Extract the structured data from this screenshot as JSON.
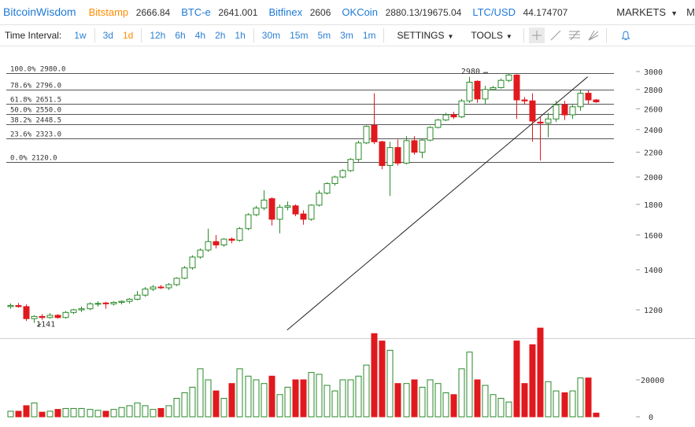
{
  "header": {
    "brand": "BitcoinWisdom",
    "tickers": [
      {
        "name": "Bitstamp",
        "price": "2666.84",
        "color": "#ff8c00"
      },
      {
        "name": "BTC-e",
        "price": "2641.001",
        "color": "#1f7ad6"
      },
      {
        "name": "Bitfinex",
        "price": "2606",
        "color": "#1f7ad6"
      },
      {
        "name": "OKCoin",
        "price": "2880.13/19675.04",
        "color": "#1f7ad6"
      },
      {
        "name": "LTC/USD",
        "price": "44.174707",
        "color": "#1f7ad6"
      }
    ],
    "markets_label": "MARKETS",
    "extra": "M"
  },
  "toolbar": {
    "time_interval_label": "Time Interval:",
    "intervals_a": [
      "1w",
      "3d",
      "1d"
    ],
    "intervals_b": [
      "12h",
      "6h",
      "4h",
      "2h",
      "1h"
    ],
    "intervals_c": [
      "30m",
      "15m",
      "5m",
      "3m",
      "1m"
    ],
    "active_interval": "1d",
    "settings_label": "SETTINGS",
    "tools_label": "TOOLS",
    "tool_icons": [
      "crosshair-icon",
      "line-draw-icon",
      "fibonacci-lines-icon",
      "fan-lines-icon"
    ],
    "alert_icon": "bell-icon"
  },
  "chart_data": {
    "type": "candlestick",
    "y_scale": "log",
    "price_ylim": [
      1080,
      3080
    ],
    "price_ticks": [
      1200,
      1400,
      1600,
      1800,
      2000,
      2200,
      2400,
      2600,
      2800,
      3000
    ],
    "volume_ticks": [
      0,
      20000
    ],
    "up_color": "#2a8a2a",
    "down_color": "#e0191e",
    "fib_levels": [
      {
        "pct": "100.0%",
        "value": 2980.0
      },
      {
        "pct": "78.6%",
        "value": 2796.0
      },
      {
        "pct": "61.8%",
        "value": 2651.5
      },
      {
        "pct": "50.0%",
        "value": 2550.0
      },
      {
        "pct": "38.2%",
        "value": 2448.5
      },
      {
        "pct": "23.6%",
        "value": 2323.0
      },
      {
        "pct": "0.0%",
        "value": 2120.0
      }
    ],
    "annotations": [
      {
        "text": "1141",
        "index": 4,
        "value": 1141
      },
      {
        "text": "2980",
        "index": 60,
        "value": 2980
      }
    ],
    "trendline": {
      "from": {
        "index": 35,
        "value": 1110
      },
      "to": {
        "index": 73,
        "value": 2940
      }
    },
    "candles": [
      {
        "o": 1215,
        "h": 1230,
        "l": 1205,
        "c": 1220
      },
      {
        "o": 1220,
        "h": 1232,
        "l": 1210,
        "c": 1215
      },
      {
        "o": 1215,
        "h": 1225,
        "l": 1150,
        "c": 1160
      },
      {
        "o": 1160,
        "h": 1175,
        "l": 1141,
        "c": 1170
      },
      {
        "o": 1170,
        "h": 1180,
        "l": 1155,
        "c": 1165
      },
      {
        "o": 1165,
        "h": 1185,
        "l": 1160,
        "c": 1175
      },
      {
        "o": 1175,
        "h": 1180,
        "l": 1160,
        "c": 1165
      },
      {
        "o": 1165,
        "h": 1195,
        "l": 1160,
        "c": 1188
      },
      {
        "o": 1188,
        "h": 1205,
        "l": 1180,
        "c": 1200
      },
      {
        "o": 1200,
        "h": 1215,
        "l": 1190,
        "c": 1205
      },
      {
        "o": 1205,
        "h": 1235,
        "l": 1198,
        "c": 1228
      },
      {
        "o": 1228,
        "h": 1240,
        "l": 1215,
        "c": 1230
      },
      {
        "o": 1232,
        "h": 1238,
        "l": 1205,
        "c": 1228
      },
      {
        "o": 1228,
        "h": 1240,
        "l": 1220,
        "c": 1235
      },
      {
        "o": 1235,
        "h": 1245,
        "l": 1225,
        "c": 1240
      },
      {
        "o": 1240,
        "h": 1255,
        "l": 1230,
        "c": 1250
      },
      {
        "o": 1250,
        "h": 1290,
        "l": 1245,
        "c": 1270
      },
      {
        "o": 1270,
        "h": 1310,
        "l": 1262,
        "c": 1300
      },
      {
        "o": 1300,
        "h": 1320,
        "l": 1290,
        "c": 1310
      },
      {
        "o": 1310,
        "h": 1320,
        "l": 1300,
        "c": 1306
      },
      {
        "o": 1306,
        "h": 1330,
        "l": 1295,
        "c": 1322
      },
      {
        "o": 1322,
        "h": 1360,
        "l": 1315,
        "c": 1355
      },
      {
        "o": 1355,
        "h": 1420,
        "l": 1350,
        "c": 1410
      },
      {
        "o": 1410,
        "h": 1480,
        "l": 1400,
        "c": 1470
      },
      {
        "o": 1470,
        "h": 1520,
        "l": 1460,
        "c": 1510
      },
      {
        "o": 1510,
        "h": 1640,
        "l": 1500,
        "c": 1560
      },
      {
        "o": 1560,
        "h": 1600,
        "l": 1520,
        "c": 1540
      },
      {
        "o": 1540,
        "h": 1580,
        "l": 1530,
        "c": 1575
      },
      {
        "o": 1575,
        "h": 1585,
        "l": 1550,
        "c": 1568
      },
      {
        "o": 1568,
        "h": 1650,
        "l": 1560,
        "c": 1640
      },
      {
        "o": 1640,
        "h": 1740,
        "l": 1630,
        "c": 1730
      },
      {
        "o": 1730,
        "h": 1790,
        "l": 1720,
        "c": 1775
      },
      {
        "o": 1775,
        "h": 1900,
        "l": 1760,
        "c": 1830
      },
      {
        "o": 1840,
        "h": 1850,
        "l": 1660,
        "c": 1700
      },
      {
        "o": 1700,
        "h": 1800,
        "l": 1610,
        "c": 1780
      },
      {
        "o": 1780,
        "h": 1820,
        "l": 1760,
        "c": 1790
      },
      {
        "o": 1790,
        "h": 1800,
        "l": 1720,
        "c": 1735
      },
      {
        "o": 1735,
        "h": 1760,
        "l": 1665,
        "c": 1700
      },
      {
        "o": 1700,
        "h": 1800,
        "l": 1690,
        "c": 1795
      },
      {
        "o": 1795,
        "h": 1900,
        "l": 1785,
        "c": 1880
      },
      {
        "o": 1880,
        "h": 1960,
        "l": 1870,
        "c": 1950
      },
      {
        "o": 1950,
        "h": 2010,
        "l": 1935,
        "c": 2000
      },
      {
        "o": 2000,
        "h": 2060,
        "l": 1990,
        "c": 2050
      },
      {
        "o": 2050,
        "h": 2150,
        "l": 2040,
        "c": 2140
      },
      {
        "o": 2140,
        "h": 2300,
        "l": 2120,
        "c": 2280
      },
      {
        "o": 2280,
        "h": 2440,
        "l": 2270,
        "c": 2430
      },
      {
        "o": 2440,
        "h": 2760,
        "l": 2270,
        "c": 2290
      },
      {
        "o": 2290,
        "h": 2300,
        "l": 2060,
        "c": 2090
      },
      {
        "o": 2090,
        "h": 2290,
        "l": 1860,
        "c": 2240
      },
      {
        "o": 2240,
        "h": 2310,
        "l": 2090,
        "c": 2110
      },
      {
        "o": 2110,
        "h": 2340,
        "l": 2100,
        "c": 2300
      },
      {
        "o": 2300,
        "h": 2340,
        "l": 2180,
        "c": 2200
      },
      {
        "o": 2200,
        "h": 2320,
        "l": 2150,
        "c": 2305
      },
      {
        "o": 2305,
        "h": 2430,
        "l": 2295,
        "c": 2420
      },
      {
        "o": 2420,
        "h": 2500,
        "l": 2410,
        "c": 2490
      },
      {
        "o": 2490,
        "h": 2560,
        "l": 2480,
        "c": 2540
      },
      {
        "o": 2540,
        "h": 2570,
        "l": 2500,
        "c": 2520
      },
      {
        "o": 2520,
        "h": 2700,
        "l": 2510,
        "c": 2680
      },
      {
        "o": 2680,
        "h": 2940,
        "l": 2660,
        "c": 2880
      },
      {
        "o": 2890,
        "h": 2900,
        "l": 2660,
        "c": 2700
      },
      {
        "o": 2700,
        "h": 2840,
        "l": 2640,
        "c": 2800
      },
      {
        "o": 2800,
        "h": 2840,
        "l": 2790,
        "c": 2820
      },
      {
        "o": 2820,
        "h": 2920,
        "l": 2810,
        "c": 2900
      },
      {
        "o": 2900,
        "h": 2980,
        "l": 2880,
        "c": 2960
      },
      {
        "o": 2960,
        "h": 2970,
        "l": 2500,
        "c": 2690
      },
      {
        "o": 2690,
        "h": 2720,
        "l": 2640,
        "c": 2680
      },
      {
        "o": 2680,
        "h": 2760,
        "l": 2290,
        "c": 2480
      },
      {
        "o": 2470,
        "h": 2520,
        "l": 2130,
        "c": 2460
      },
      {
        "o": 2460,
        "h": 2560,
        "l": 2330,
        "c": 2500
      },
      {
        "o": 2500,
        "h": 2680,
        "l": 2470,
        "c": 2640
      },
      {
        "o": 2640,
        "h": 2680,
        "l": 2490,
        "c": 2540
      },
      {
        "o": 2540,
        "h": 2640,
        "l": 2500,
        "c": 2620
      },
      {
        "o": 2620,
        "h": 2800,
        "l": 2580,
        "c": 2760
      },
      {
        "o": 2760,
        "h": 2790,
        "l": 2640,
        "c": 2690
      },
      {
        "o": 2690,
        "h": 2700,
        "l": 2660,
        "c": 2670
      }
    ],
    "volumes": [
      3000,
      3000,
      6000,
      7500,
      2500,
      3000,
      4000,
      4500,
      4500,
      4500,
      4000,
      3500,
      3000,
      4000,
      5000,
      6000,
      7500,
      6000,
      4000,
      4500,
      6000,
      10000,
      13000,
      16000,
      26000,
      20000,
      14000,
      10000,
      18000,
      26000,
      22000,
      20000,
      18000,
      22000,
      12000,
      16000,
      20000,
      20000,
      24000,
      23000,
      17000,
      14000,
      20000,
      20000,
      22000,
      28000,
      45000,
      41000,
      36000,
      18000,
      18000,
      20000,
      16000,
      20000,
      18000,
      13000,
      12000,
      26000,
      35000,
      20000,
      17000,
      12000,
      10000,
      8000,
      41000,
      18000,
      39000,
      48000,
      19000,
      14000,
      13000,
      14000,
      21000,
      21000,
      2000
    ]
  }
}
